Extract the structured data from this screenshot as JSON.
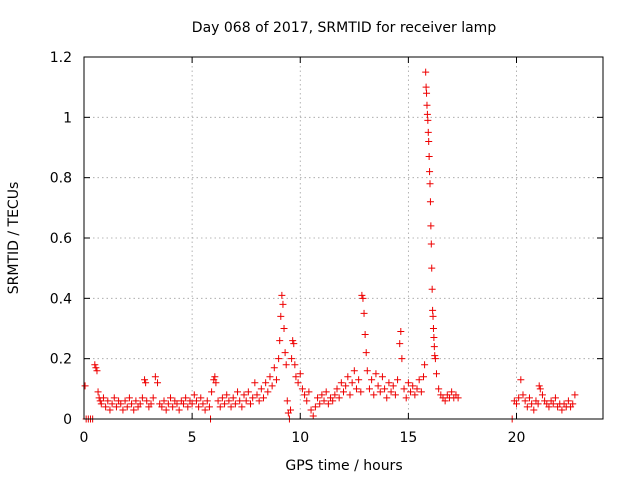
{
  "chart_data": {
    "type": "scatter",
    "title": "Day 068 of 2017, SRMTID for receiver lamp",
    "xlabel": "GPS time / hours",
    "ylabel": "SRMTID / TECUs",
    "xlim": [
      0,
      24
    ],
    "ylim": [
      0,
      1.2
    ],
    "xticks": [
      0,
      5,
      10,
      15,
      20
    ],
    "yticks": [
      0,
      0.2,
      0.4,
      0.6,
      0.8,
      1.0,
      1.2
    ],
    "xtick_labels": [
      "0",
      "5",
      "10",
      "15",
      "20"
    ],
    "ytick_labels": [
      "0",
      "0.2",
      "0.4",
      "0.6",
      "0.8",
      "1",
      "1.2"
    ],
    "grid": true,
    "legend": "none",
    "marker": "plus",
    "color": "#ee0000",
    "series": [
      {
        "name": "SRMTID",
        "points": [
          [
            0.05,
            0.11
          ],
          [
            0.1,
            0.0
          ],
          [
            0.2,
            0.0
          ],
          [
            0.3,
            0.0
          ],
          [
            0.4,
            0.0
          ],
          [
            0.5,
            0.18
          ],
          [
            0.55,
            0.17
          ],
          [
            0.6,
            0.16
          ],
          [
            0.65,
            0.09
          ],
          [
            0.7,
            0.07
          ],
          [
            0.75,
            0.06
          ],
          [
            0.8,
            0.05
          ],
          [
            0.9,
            0.07
          ],
          [
            1.0,
            0.04
          ],
          [
            1.1,
            0.06
          ],
          [
            1.2,
            0.03
          ],
          [
            1.3,
            0.05
          ],
          [
            1.4,
            0.07
          ],
          [
            1.5,
            0.04
          ],
          [
            1.6,
            0.06
          ],
          [
            1.7,
            0.05
          ],
          [
            1.8,
            0.03
          ],
          [
            1.9,
            0.06
          ],
          [
            2.0,
            0.04
          ],
          [
            2.1,
            0.07
          ],
          [
            2.2,
            0.05
          ],
          [
            2.3,
            0.03
          ],
          [
            2.4,
            0.06
          ],
          [
            2.5,
            0.04
          ],
          [
            2.6,
            0.05
          ],
          [
            2.7,
            0.07
          ],
          [
            2.8,
            0.13
          ],
          [
            2.85,
            0.12
          ],
          [
            2.9,
            0.06
          ],
          [
            3.0,
            0.04
          ],
          [
            3.1,
            0.05
          ],
          [
            3.2,
            0.07
          ],
          [
            3.3,
            0.14
          ],
          [
            3.4,
            0.12
          ],
          [
            3.5,
            0.05
          ],
          [
            3.6,
            0.04
          ],
          [
            3.7,
            0.06
          ],
          [
            3.8,
            0.03
          ],
          [
            3.9,
            0.05
          ],
          [
            4.0,
            0.07
          ],
          [
            4.1,
            0.04
          ],
          [
            4.2,
            0.06
          ],
          [
            4.3,
            0.05
          ],
          [
            4.4,
            0.03
          ],
          [
            4.5,
            0.06
          ],
          [
            4.6,
            0.05
          ],
          [
            4.7,
            0.07
          ],
          [
            4.8,
            0.04
          ],
          [
            4.9,
            0.06
          ],
          [
            5.0,
            0.05
          ],
          [
            5.1,
            0.08
          ],
          [
            5.2,
            0.06
          ],
          [
            5.3,
            0.04
          ],
          [
            5.4,
            0.07
          ],
          [
            5.5,
            0.05
          ],
          [
            5.6,
            0.03
          ],
          [
            5.7,
            0.06
          ],
          [
            5.8,
            0.04
          ],
          [
            5.85,
            0.0
          ],
          [
            5.9,
            0.09
          ],
          [
            6.0,
            0.13
          ],
          [
            6.05,
            0.14
          ],
          [
            6.1,
            0.12
          ],
          [
            6.2,
            0.06
          ],
          [
            6.3,
            0.04
          ],
          [
            6.4,
            0.07
          ],
          [
            6.5,
            0.05
          ],
          [
            6.6,
            0.08
          ],
          [
            6.7,
            0.06
          ],
          [
            6.8,
            0.04
          ],
          [
            6.9,
            0.07
          ],
          [
            7.0,
            0.05
          ],
          [
            7.1,
            0.09
          ],
          [
            7.2,
            0.06
          ],
          [
            7.3,
            0.04
          ],
          [
            7.4,
            0.08
          ],
          [
            7.5,
            0.06
          ],
          [
            7.6,
            0.09
          ],
          [
            7.7,
            0.05
          ],
          [
            7.8,
            0.07
          ],
          [
            7.9,
            0.12
          ],
          [
            8.0,
            0.08
          ],
          [
            8.1,
            0.06
          ],
          [
            8.2,
            0.1
          ],
          [
            8.3,
            0.07
          ],
          [
            8.4,
            0.12
          ],
          [
            8.5,
            0.09
          ],
          [
            8.6,
            0.14
          ],
          [
            8.7,
            0.11
          ],
          [
            8.8,
            0.17
          ],
          [
            8.9,
            0.13
          ],
          [
            9.0,
            0.2
          ],
          [
            9.05,
            0.26
          ],
          [
            9.1,
            0.34
          ],
          [
            9.15,
            0.41
          ],
          [
            9.2,
            0.38
          ],
          [
            9.25,
            0.3
          ],
          [
            9.3,
            0.22
          ],
          [
            9.35,
            0.18
          ],
          [
            9.4,
            0.06
          ],
          [
            9.45,
            0.02
          ],
          [
            9.5,
            0.0
          ],
          [
            9.55,
            0.03
          ],
          [
            9.6,
            0.2
          ],
          [
            9.65,
            0.26
          ],
          [
            9.7,
            0.25
          ],
          [
            9.75,
            0.18
          ],
          [
            9.8,
            0.14
          ],
          [
            9.9,
            0.12
          ],
          [
            10.0,
            0.15
          ],
          [
            10.1,
            0.1
          ],
          [
            10.2,
            0.08
          ],
          [
            10.3,
            0.06
          ],
          [
            10.4,
            0.09
          ],
          [
            10.5,
            0.03
          ],
          [
            10.6,
            0.01
          ],
          [
            10.7,
            0.04
          ],
          [
            10.8,
            0.07
          ],
          [
            10.9,
            0.05
          ],
          [
            11.0,
            0.08
          ],
          [
            11.1,
            0.06
          ],
          [
            11.2,
            0.09
          ],
          [
            11.3,
            0.05
          ],
          [
            11.4,
            0.07
          ],
          [
            11.5,
            0.06
          ],
          [
            11.6,
            0.08
          ],
          [
            11.7,
            0.1
          ],
          [
            11.8,
            0.07
          ],
          [
            11.9,
            0.12
          ],
          [
            12.0,
            0.09
          ],
          [
            12.1,
            0.11
          ],
          [
            12.2,
            0.14
          ],
          [
            12.3,
            0.08
          ],
          [
            12.4,
            0.12
          ],
          [
            12.5,
            0.16
          ],
          [
            12.6,
            0.1
          ],
          [
            12.7,
            0.13
          ],
          [
            12.8,
            0.09
          ],
          [
            12.85,
            0.41
          ],
          [
            12.9,
            0.4
          ],
          [
            12.95,
            0.35
          ],
          [
            13.0,
            0.28
          ],
          [
            13.05,
            0.22
          ],
          [
            13.1,
            0.16
          ],
          [
            13.2,
            0.1
          ],
          [
            13.3,
            0.13
          ],
          [
            13.4,
            0.08
          ],
          [
            13.5,
            0.15
          ],
          [
            13.6,
            0.11
          ],
          [
            13.7,
            0.09
          ],
          [
            13.8,
            0.14
          ],
          [
            13.9,
            0.1
          ],
          [
            14.0,
            0.07
          ],
          [
            14.1,
            0.12
          ],
          [
            14.2,
            0.09
          ],
          [
            14.3,
            0.11
          ],
          [
            14.4,
            0.08
          ],
          [
            14.5,
            0.13
          ],
          [
            14.6,
            0.25
          ],
          [
            14.65,
            0.29
          ],
          [
            14.7,
            0.2
          ],
          [
            14.8,
            0.1
          ],
          [
            14.9,
            0.07
          ],
          [
            15.0,
            0.12
          ],
          [
            15.1,
            0.09
          ],
          [
            15.2,
            0.11
          ],
          [
            15.3,
            0.08
          ],
          [
            15.4,
            0.1
          ],
          [
            15.5,
            0.13
          ],
          [
            15.6,
            0.09
          ],
          [
            15.7,
            0.14
          ],
          [
            15.75,
            0.18
          ],
          [
            15.8,
            1.15
          ],
          [
            15.82,
            1.1
          ],
          [
            15.84,
            1.08
          ],
          [
            15.86,
            1.04
          ],
          [
            15.88,
            1.01
          ],
          [
            15.9,
            0.99
          ],
          [
            15.92,
            0.95
          ],
          [
            15.94,
            0.92
          ],
          [
            15.96,
            0.87
          ],
          [
            15.98,
            0.82
          ],
          [
            16.0,
            0.78
          ],
          [
            16.02,
            0.72
          ],
          [
            16.04,
            0.64
          ],
          [
            16.06,
            0.58
          ],
          [
            16.08,
            0.5
          ],
          [
            16.1,
            0.43
          ],
          [
            16.12,
            0.36
          ],
          [
            16.14,
            0.34
          ],
          [
            16.16,
            0.3
          ],
          [
            16.18,
            0.27
          ],
          [
            16.2,
            0.24
          ],
          [
            16.22,
            0.21
          ],
          [
            16.25,
            0.2
          ],
          [
            16.3,
            0.15
          ],
          [
            16.4,
            0.1
          ],
          [
            16.5,
            0.08
          ],
          [
            16.6,
            0.07
          ],
          [
            16.7,
            0.06
          ],
          [
            16.8,
            0.08
          ],
          [
            16.9,
            0.07
          ],
          [
            17.0,
            0.09
          ],
          [
            17.1,
            0.07
          ],
          [
            17.2,
            0.08
          ],
          [
            17.3,
            0.07
          ],
          [
            19.8,
            0.0
          ],
          [
            19.9,
            0.06
          ],
          [
            20.0,
            0.05
          ],
          [
            20.1,
            0.07
          ],
          [
            20.2,
            0.13
          ],
          [
            20.3,
            0.08
          ],
          [
            20.4,
            0.06
          ],
          [
            20.5,
            0.04
          ],
          [
            20.6,
            0.07
          ],
          [
            20.7,
            0.05
          ],
          [
            20.8,
            0.03
          ],
          [
            20.9,
            0.06
          ],
          [
            21.0,
            0.05
          ],
          [
            21.05,
            0.11
          ],
          [
            21.1,
            0.1
          ],
          [
            21.2,
            0.08
          ],
          [
            21.3,
            0.06
          ],
          [
            21.4,
            0.05
          ],
          [
            21.5,
            0.04
          ],
          [
            21.6,
            0.06
          ],
          [
            21.7,
            0.05
          ],
          [
            21.8,
            0.07
          ],
          [
            21.9,
            0.04
          ],
          [
            22.0,
            0.05
          ],
          [
            22.1,
            0.03
          ],
          [
            22.2,
            0.05
          ],
          [
            22.3,
            0.04
          ],
          [
            22.4,
            0.06
          ],
          [
            22.5,
            0.04
          ],
          [
            22.6,
            0.05
          ],
          [
            22.7,
            0.08
          ]
        ]
      }
    ]
  }
}
